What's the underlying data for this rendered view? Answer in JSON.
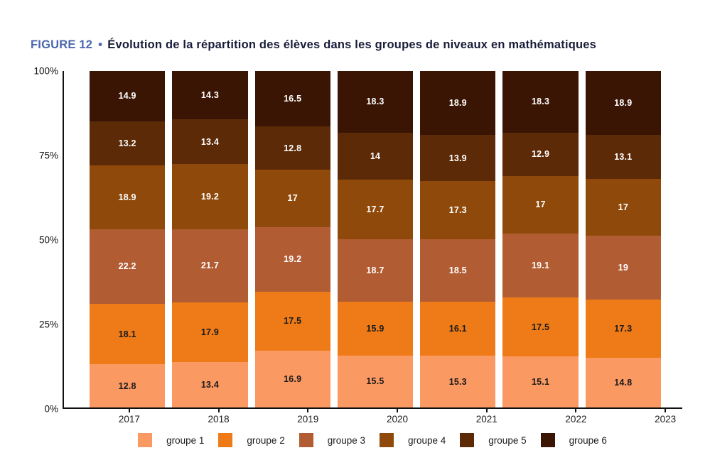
{
  "header": {
    "figure_label": "FIGURE 12",
    "separator": "•",
    "title": "Évolution de la répartition des élèves dans les groupes de niveaux en mathématiques"
  },
  "colors": {
    "figure_label_blue": "#4A68AE",
    "title_text": "#181C38",
    "axis": "#111111",
    "value_label_dark": "#1A1A1A",
    "value_label_light": "#FFFFFF"
  },
  "chart_data": {
    "type": "bar",
    "variant": "stacked-percentage",
    "title": "Évolution de la répartition des élèves dans les groupes de niveaux en mathématiques",
    "categories": [
      "2017",
      "2018",
      "2019",
      "2020",
      "2021",
      "2022",
      "2023"
    ],
    "series": [
      {
        "name": "groupe 1",
        "color": "#FB9962",
        "label_color": "dark",
        "values": [
          12.8,
          13.4,
          16.9,
          15.5,
          15.3,
          15.1,
          14.8
        ]
      },
      {
        "name": "groupe 2",
        "color": "#EE7B17",
        "label_color": "dark",
        "values": [
          18.1,
          17.9,
          17.5,
          15.9,
          16.1,
          17.5,
          17.3
        ]
      },
      {
        "name": "groupe 3",
        "color": "#B25C33",
        "label_color": "light",
        "values": [
          22.2,
          21.7,
          19.2,
          18.7,
          18.5,
          19.1,
          19
        ]
      },
      {
        "name": "groupe 4",
        "color": "#8F4A0B",
        "label_color": "light",
        "values": [
          18.9,
          19.2,
          17,
          17.7,
          17.3,
          17,
          17
        ]
      },
      {
        "name": "groupe 5",
        "color": "#5C2A07",
        "label_color": "light",
        "values": [
          13.2,
          13.4,
          12.8,
          14,
          13.9,
          12.9,
          13.1
        ]
      },
      {
        "name": "groupe 6",
        "color": "#3A1504",
        "label_color": "light",
        "values": [
          14.9,
          14.3,
          16.5,
          18.3,
          18.9,
          18.3,
          18.9
        ]
      }
    ],
    "y_axis": {
      "min": 0,
      "max": 100,
      "ticks": [
        {
          "value": 0,
          "label": "0%"
        },
        {
          "value": 25,
          "label": "25%"
        },
        {
          "value": 50,
          "label": "50%"
        },
        {
          "value": 75,
          "label": "75%"
        },
        {
          "value": 100,
          "label": "100%"
        }
      ]
    },
    "legend_position": "bottom",
    "grid": false
  }
}
